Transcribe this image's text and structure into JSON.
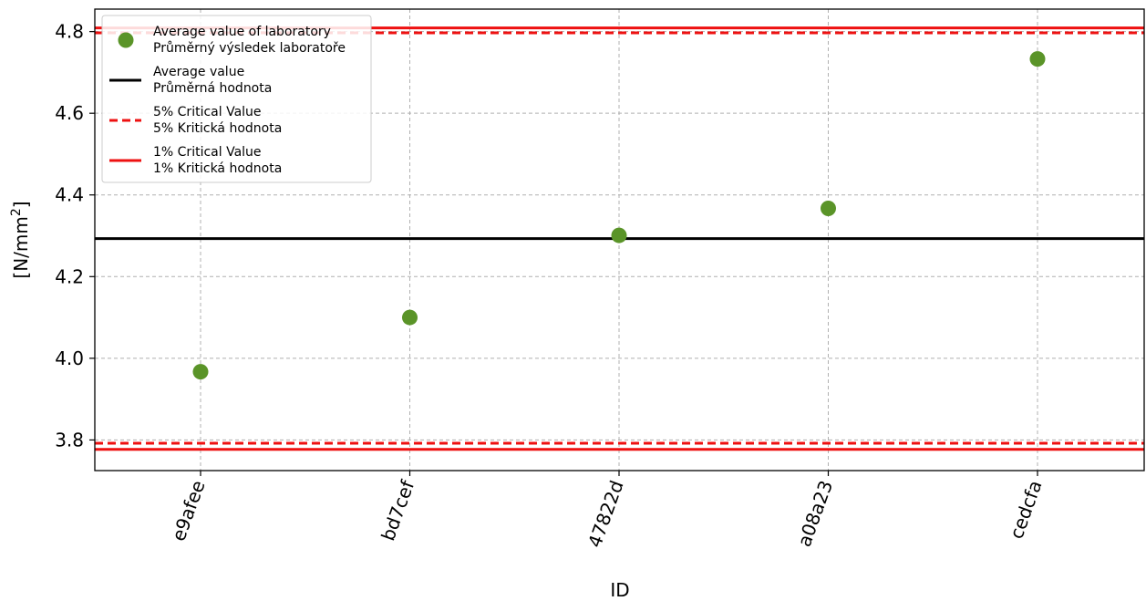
{
  "chart_data": {
    "type": "scatter",
    "xlabel": "ID",
    "ylabel": "[N/mm²]",
    "ylabel_base": "[N/mm",
    "ylabel_sup": "2",
    "ylabel_end": "]",
    "categories": [
      "e9afee",
      "bd7cef",
      "47822d",
      "a08a23",
      "cedcfa"
    ],
    "values": [
      3.967,
      4.1,
      4.301,
      4.367,
      4.733
    ],
    "ylim": [
      3.725,
      4.855
    ],
    "yticks": [
      "3.8",
      "4.0",
      "4.2",
      "4.4",
      "4.6",
      "4.8"
    ],
    "ytick_values": [
      3.8,
      4.0,
      4.2,
      4.4,
      4.6,
      4.8
    ],
    "grid": true,
    "legend_position": "top-left",
    "reference_lines": {
      "average": 4.293,
      "critical_5_upper": 4.797,
      "critical_5_lower": 3.792,
      "critical_1_upper": 4.809,
      "critical_1_lower": 3.777
    },
    "colors": {
      "points": "#5a9428",
      "average": "#000000",
      "critical": "#ee1111",
      "grid": "#b0b0b0"
    },
    "legend": [
      {
        "line1": "Average value of laboratory",
        "line2": "Průměrný výsledek laboratoře",
        "kind": "marker"
      },
      {
        "line1": "Average value",
        "line2": "Průměrná hodnota",
        "kind": "solid-black"
      },
      {
        "line1": "5% Critical Value",
        "line2": "5% Kritická hodnota",
        "kind": "dashed-red"
      },
      {
        "line1": "1% Critical Value",
        "line2": "1% Kritická hodnota",
        "kind": "solid-red"
      }
    ]
  }
}
